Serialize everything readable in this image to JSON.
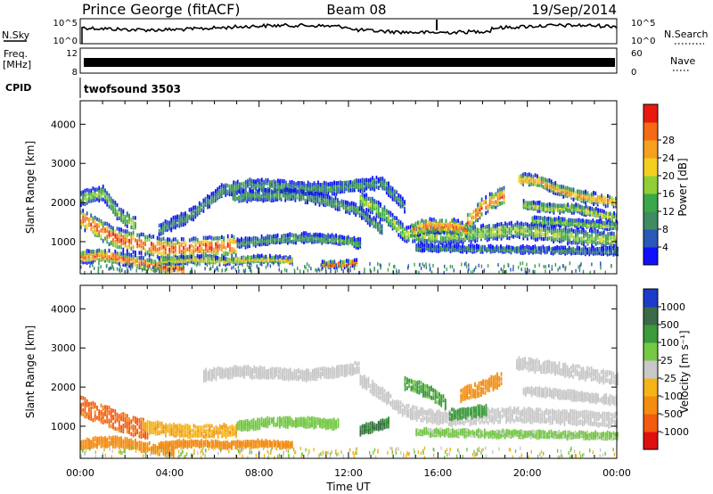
{
  "header": {
    "station": "Prince George (fitACF)",
    "beam": "Beam 08",
    "date": "19/Sep/2014"
  },
  "status_panels": {
    "nsky": {
      "label": "N.Sky",
      "ticks": [
        "10^5",
        "10^0"
      ]
    },
    "nsearch": {
      "label": "N.Search",
      "ticks": [
        "10^5",
        "10^0"
      ]
    },
    "freq": {
      "label_top": "Freq.",
      "label_unit": "[MHz]",
      "ticks": [
        "12",
        "8"
      ]
    },
    "nave": {
      "label": "Nave",
      "ticks": [
        "60",
        "0"
      ]
    },
    "cpid": {
      "label": "CPID",
      "value": "twofsound 3503"
    }
  },
  "chart_data": [
    {
      "type": "heatmap",
      "name": "power",
      "xlabel": "",
      "ylabel": "Slant Range [km]",
      "xlim": [
        0,
        24
      ],
      "ylim": [
        180,
        4600
      ],
      "yticks": [
        "1000",
        "2000",
        "3000",
        "4000"
      ],
      "colorbar": {
        "label": "Power [dB]",
        "ticks": [
          "4",
          "8",
          "12",
          "16",
          "20",
          "24",
          "28"
        ],
        "colors": [
          "#1010ff",
          "#2a58b8",
          "#3f8c62",
          "#3aa84a",
          "#8fcf35",
          "#f3d020",
          "#f7a020",
          "#f46a16",
          "#e81a10"
        ]
      },
      "bands": [
        {
          "x": [
            0,
            1.5,
            3,
            4,
            5.5,
            7
          ],
          "y": [
            1600,
            1100,
            900,
            800,
            850,
            900
          ],
          "w": 450,
          "level": 0.85
        },
        {
          "x": [
            0,
            1,
            2,
            3,
            3.8,
            4.6
          ],
          "y": [
            600,
            650,
            550,
            420,
            330,
            300
          ],
          "w": 250,
          "level": 0.85
        },
        {
          "x": [
            0,
            1,
            1.7,
            2.5
          ],
          "y": [
            2100,
            2250,
            1700,
            1400
          ],
          "w": 300,
          "level": 0.45
        },
        {
          "x": [
            3.5,
            5,
            6.3,
            7.5,
            9,
            11,
            12.5,
            13.5,
            14.5
          ],
          "y": [
            1300,
            1700,
            2300,
            2450,
            2400,
            2350,
            2450,
            2500,
            1900
          ],
          "w": 250,
          "level": 0.3
        },
        {
          "x": [
            6.8,
            8,
            9.5,
            11,
            12.4,
            13.5
          ],
          "y": [
            2150,
            2180,
            2200,
            2050,
            1800,
            1300
          ],
          "w": 220,
          "level": 0.35
        },
        {
          "x": [
            7,
            8.5,
            10,
            11.5,
            12.5
          ],
          "y": [
            950,
            1050,
            1100,
            1050,
            950
          ],
          "w": 180,
          "level": 0.35
        },
        {
          "x": [
            3.5,
            5,
            6.5,
            8,
            9.5
          ],
          "y": [
            500,
            550,
            500,
            560,
            520
          ],
          "w": 120,
          "level": 0.65
        },
        {
          "x": [
            10.8,
            11.6,
            12.4
          ],
          "y": [
            420,
            420,
            470
          ],
          "w": 120,
          "level": 0.92
        },
        {
          "x": [
            12.5,
            13.6,
            14.5,
            15.5,
            16.5,
            17.5,
            18.5,
            19.5,
            21,
            22.5,
            24
          ],
          "y": [
            2100,
            1700,
            1200,
            1150,
            1150,
            1200,
            1250,
            1300,
            1200,
            1100,
            1050
          ],
          "w": 330,
          "level": 0.5
        },
        {
          "x": [
            14.8,
            15.4,
            16,
            16.6,
            17.3
          ],
          "y": [
            1300,
            1400,
            1400,
            1400,
            1300
          ],
          "w": 300,
          "level": 0.78
        },
        {
          "x": [
            17.3,
            18,
            18.6,
            19
          ],
          "y": [
            1500,
            1900,
            2100,
            2200
          ],
          "w": 380,
          "level": 0.82
        },
        {
          "x": [
            19.6,
            20.5,
            21.5,
            22.5,
            24
          ],
          "y": [
            2600,
            2550,
            2300,
            2150,
            2000
          ],
          "w": 230,
          "level": 0.72
        },
        {
          "x": [
            19.8,
            21,
            22.2,
            23.2,
            24
          ],
          "y": [
            1950,
            1850,
            1850,
            1700,
            1600
          ],
          "w": 170,
          "level": 0.55
        },
        {
          "x": [
            20.2,
            21.5,
            22.5,
            24
          ],
          "y": [
            1550,
            1500,
            1450,
            1400
          ],
          "w": 150,
          "level": 0.5
        },
        {
          "x": [
            15,
            17,
            19,
            21,
            23,
            24
          ],
          "y": [
            850,
            820,
            800,
            780,
            760,
            750
          ],
          "w": 120,
          "level": 0.28
        }
      ]
    },
    {
      "type": "heatmap",
      "name": "velocity",
      "xlabel": "Time UT",
      "ylabel": "Slant Range [km]",
      "xlim": [
        0,
        24
      ],
      "ylim": [
        180,
        4600
      ],
      "xticks": [
        "00:00",
        "04:00",
        "08:00",
        "12:00",
        "16:00",
        "20:00",
        "00:00"
      ],
      "yticks": [
        "1000",
        "2000",
        "3000",
        "4000"
      ],
      "colorbar": {
        "label": "Velocity [m s⁻¹]",
        "ticks": [
          "1000",
          "500",
          "100",
          "25",
          "-25",
          "-100",
          "-500",
          "-1000"
        ],
        "colors": [
          "#1a3cc8",
          "#3a6a48",
          "#3a9a3c",
          "#74c844",
          "#c8c8c8",
          "#f4b418",
          "#f48c10",
          "#f45a10",
          "#e01010"
        ]
      },
      "bands": [
        {
          "x": [
            0,
            1,
            2,
            3
          ],
          "y": [
            1500,
            1300,
            1050,
            900
          ],
          "w": 420,
          "vel": -600
        },
        {
          "x": [
            2.8,
            4,
            5.5,
            7
          ],
          "y": [
            1000,
            900,
            850,
            900
          ],
          "w": 260,
          "vel": -80
        },
        {
          "x": [
            0,
            1.5,
            3,
            4.2
          ],
          "y": [
            550,
            600,
            450,
            350
          ],
          "w": 200,
          "vel": -200
        },
        {
          "x": [
            3.5,
            5,
            6.5,
            8,
            9.5
          ],
          "y": [
            500,
            560,
            520,
            560,
            520
          ],
          "w": 120,
          "vel": -220
        },
        {
          "x": [
            5.5,
            7,
            8.5,
            10,
            11.5,
            12.5
          ],
          "y": [
            2300,
            2400,
            2350,
            2300,
            2400,
            2500
          ],
          "w": 220,
          "vel": 0
        },
        {
          "x": [
            7,
            8.5,
            10,
            11.5
          ],
          "y": [
            1000,
            1100,
            1100,
            1050
          ],
          "w": 180,
          "vel": 60
        },
        {
          "x": [
            12.5,
            13.5,
            14.5,
            15.5,
            16.5
          ],
          "y": [
            2200,
            1800,
            1400,
            1250,
            1200
          ],
          "w": 260,
          "vel": 0
        },
        {
          "x": [
            16.5,
            18,
            19.5,
            21,
            22.5,
            24
          ],
          "y": [
            1200,
            1250,
            1300,
            1250,
            1200,
            1150
          ],
          "w": 300,
          "vel": 0
        },
        {
          "x": [
            19.5,
            21,
            22.5,
            24
          ],
          "y": [
            2600,
            2500,
            2350,
            2200
          ],
          "w": 260,
          "vel": 0
        },
        {
          "x": [
            19.8,
            21,
            22.5,
            24
          ],
          "y": [
            1900,
            1850,
            1750,
            1650
          ],
          "w": 170,
          "vel": 0
        },
        {
          "x": [
            17,
            18,
            18.8
          ],
          "y": [
            1800,
            2000,
            2200
          ],
          "w": 300,
          "vel": -300
        },
        {
          "x": [
            14.5,
            15.5,
            16.3
          ],
          "y": [
            2100,
            1900,
            1600
          ],
          "w": 250,
          "vel": 120
        },
        {
          "x": [
            16.5,
            17.5,
            18.2
          ],
          "y": [
            1300,
            1350,
            1400
          ],
          "w": 220,
          "vel": 200
        },
        {
          "x": [
            12.5,
            13.2,
            13.8
          ],
          "y": [
            900,
            1000,
            1100
          ],
          "w": 180,
          "vel": 500
        },
        {
          "x": [
            15,
            17,
            19,
            21,
            23,
            24
          ],
          "y": [
            850,
            820,
            800,
            780,
            760,
            750
          ],
          "w": 120,
          "vel": 40
        }
      ]
    }
  ]
}
